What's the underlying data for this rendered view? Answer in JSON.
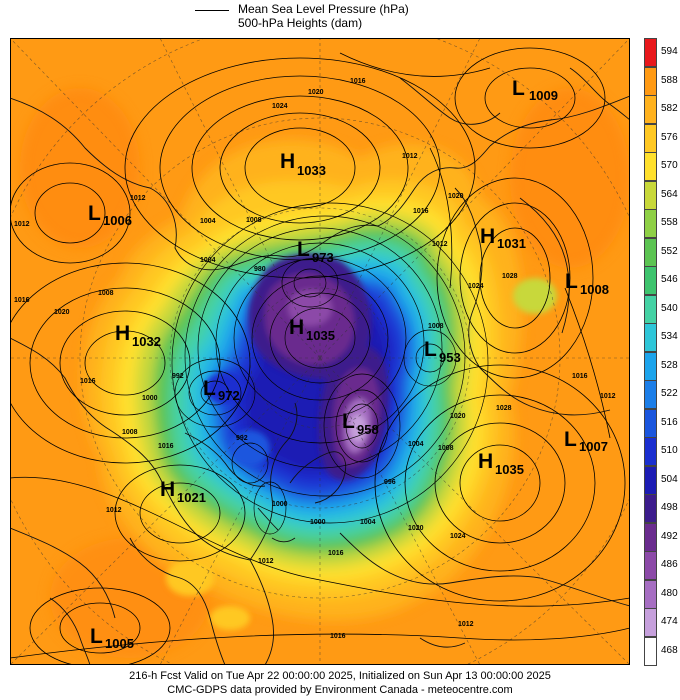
{
  "legend": {
    "line1": "Mean Sea Level Pressure (hPa)",
    "line2": "500-hPa Heights (dam)"
  },
  "colorbar": {
    "labels": [
      "594",
      "588",
      "582",
      "576",
      "570",
      "564",
      "558",
      "552",
      "546",
      "540",
      "534",
      "528",
      "522",
      "516",
      "510",
      "504",
      "498",
      "492",
      "486",
      "480",
      "474",
      "468"
    ],
    "colors": [
      "#e8181c",
      "#ff9a14",
      "#ffb21e",
      "#ffc823",
      "#ffe02d",
      "#c8d83a",
      "#8fd046",
      "#5cc452",
      "#3ec46e",
      "#44d2a4",
      "#2ec6d8",
      "#1ca4ec",
      "#1c7ee8",
      "#1a56de",
      "#1a2fd0",
      "#1c1cb4",
      "#3c1c8c",
      "#6a2c8e",
      "#8c4aa8",
      "#a66ec2",
      "#c6a0dc",
      "#ffffff"
    ]
  },
  "systems": [
    {
      "type": "L",
      "value": "1009"
    },
    {
      "type": "H",
      "value": "1033"
    },
    {
      "type": "L",
      "value": "1006"
    },
    {
      "type": "H",
      "value": "1031"
    },
    {
      "type": "L",
      "value": "973"
    },
    {
      "type": "L",
      "value": "1008"
    },
    {
      "type": "H",
      "value": "1032"
    },
    {
      "type": "H",
      "value": "1035"
    },
    {
      "type": "L",
      "value": "953"
    },
    {
      "type": "L",
      "value": "972"
    },
    {
      "type": "L",
      "value": "958"
    },
    {
      "type": "L",
      "value": "1007"
    },
    {
      "type": "H",
      "value": "1035"
    },
    {
      "type": "H",
      "value": "1021"
    },
    {
      "type": "L",
      "value": "1005"
    }
  ],
  "isobar_labels": [
    "1016",
    "1020",
    "1024",
    "1012",
    "1012",
    "1004",
    "1008",
    "1016",
    "1008",
    "1012",
    "1020",
    "1016",
    "1020",
    "1016",
    "1012",
    "1024",
    "1028",
    "1012",
    "1016",
    "1028",
    "1020",
    "1016",
    "992",
    "1008",
    "1000",
    "992",
    "980",
    "1004",
    "1008",
    "1000",
    "1004",
    "1012",
    "1016",
    "1012",
    "1000",
    "1004",
    "1008",
    "1020",
    "1016",
    "1012",
    "1024",
    "996"
  ],
  "footer": {
    "line1": "216-h Fcst Valid on Tue Apr 22 00:00:00 2025, Initialized on Sun Apr 13 00:00:00 2025",
    "line2": "CMC-GDPS data provided by Environment Canada - meteocentre.com"
  }
}
